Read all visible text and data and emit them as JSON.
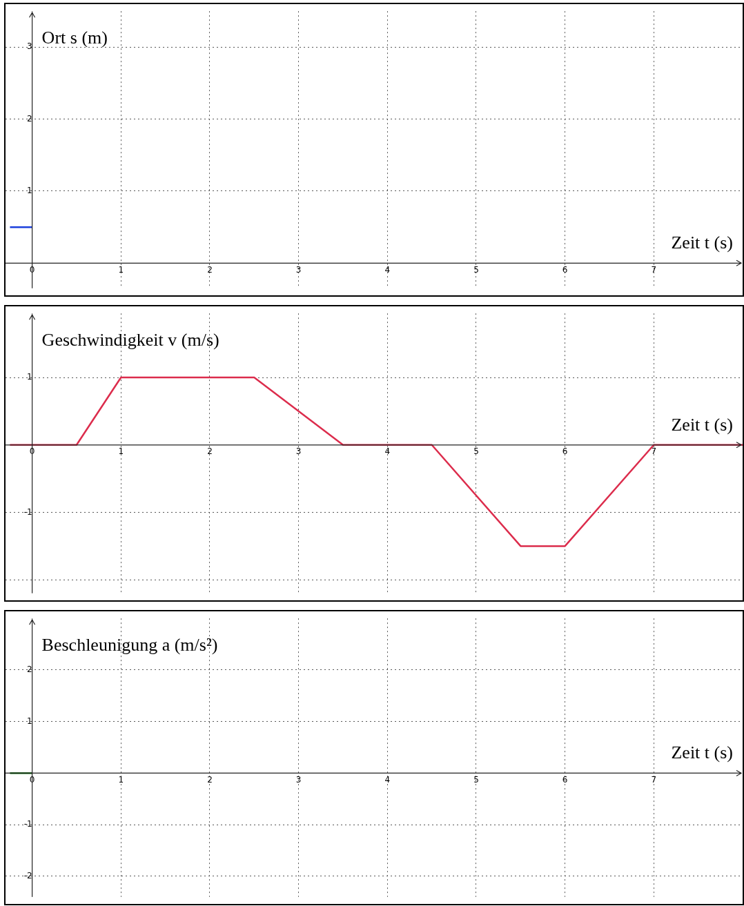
{
  "chart_data": [
    {
      "type": "line",
      "ylabel": "Ort s (m)",
      "xlabel": "Zeit t (s)",
      "xlim": [
        -0.3,
        8
      ],
      "ylim": [
        -0.35,
        3.5
      ],
      "xticks": [
        0,
        1,
        2,
        3,
        4,
        5,
        6,
        7
      ],
      "yticks": [
        1,
        2,
        3
      ],
      "grid": true,
      "marker": "none",
      "series": [
        {
          "color": "#1a3fdc",
          "x": [
            -0.25,
            0
          ],
          "values": [
            0.5,
            0.5
          ]
        }
      ]
    },
    {
      "type": "line",
      "ylabel": "Geschwindigkeit v (m/s)",
      "xlabel": "Zeit t (s)",
      "xlim": [
        -0.3,
        8
      ],
      "ylim": [
        -2.2,
        1.95
      ],
      "xticks": [
        0,
        1,
        2,
        3,
        4,
        5,
        6,
        7
      ],
      "yticks": [
        {
          "value": -2,
          "label": null
        },
        -1,
        1
      ],
      "grid": true,
      "marker": "none",
      "series": [
        {
          "color": "#dc2c4c",
          "x": [
            -0.25,
            0.5,
            1,
            2.5,
            3.5,
            4.5,
            5.5,
            6,
            7,
            8
          ],
          "values": [
            0,
            0,
            1,
            1,
            0,
            0,
            -1.5,
            -1.5,
            0,
            0
          ]
        }
      ]
    },
    {
      "type": "line",
      "ylabel": "Beschleunigung a (m/s²)",
      "xlabel": "Zeit t (s)",
      "xlim": [
        -0.3,
        8
      ],
      "ylim": [
        -2.4,
        3
      ],
      "xticks": [
        0,
        1,
        2,
        3,
        4,
        5,
        6,
        7
      ],
      "yticks": [
        -2,
        -1,
        1,
        2
      ],
      "grid": true,
      "marker": "none",
      "series": [
        {
          "color": "#1a7a1a",
          "x": [
            -0.25,
            0
          ],
          "values": [
            0,
            0
          ]
        }
      ]
    }
  ]
}
